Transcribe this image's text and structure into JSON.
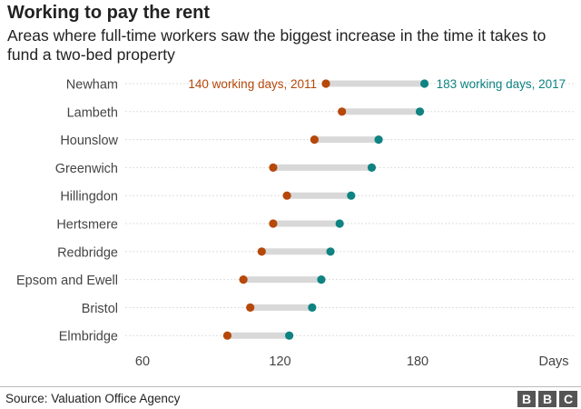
{
  "title": "Working to pay the rent",
  "subtitle": "Areas where full-time workers saw the biggest increase in the time it takes to fund a two-bed property",
  "source": "Source: Valuation Office Agency",
  "logo": [
    "B",
    "B",
    "C"
  ],
  "colors": {
    "y2011": "#b6480a",
    "y2017": "#0e8382",
    "connector": "#d8d8d8",
    "grid": "#dddddd"
  },
  "chart_data": {
    "type": "dumbbell",
    "categories": [
      "Newham",
      "Lambeth",
      "Hounslow",
      "Greenwich",
      "Hillingdon",
      "Hertsmere",
      "Redbridge",
      "Epsom and Ewell",
      "Bristol",
      "Elmbridge"
    ],
    "series": [
      {
        "name": "2011",
        "values": [
          140,
          147,
          135,
          117,
          123,
          117,
          112,
          104,
          107,
          97
        ]
      },
      {
        "name": "2017",
        "values": [
          183,
          181,
          163,
          160,
          151,
          146,
          142,
          138,
          134,
          124
        ]
      }
    ],
    "annotations": [
      "140 working days, 2011",
      "183 working days, 2017"
    ],
    "xlabel": "Days",
    "xticks": [
      60,
      120,
      180
    ],
    "xlim": [
      60,
      200
    ],
    "grid": true
  }
}
